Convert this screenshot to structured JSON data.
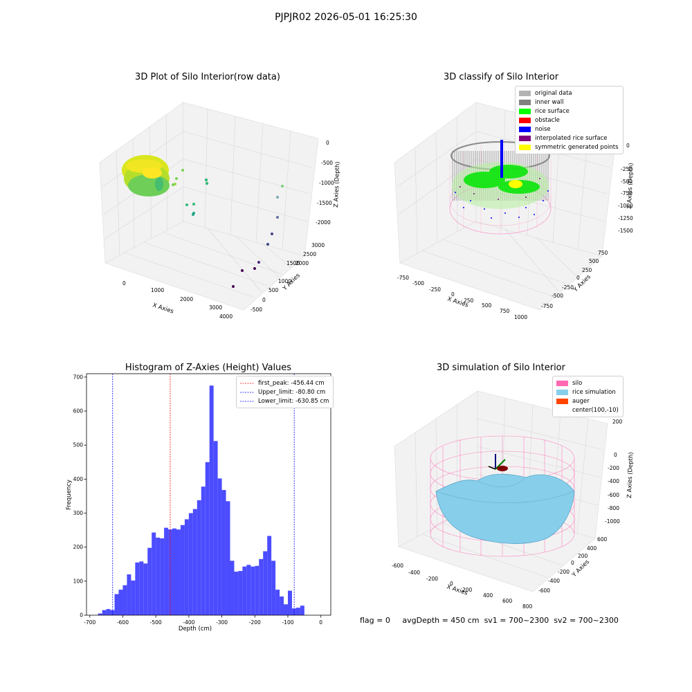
{
  "suptitle": "PJPJR02 2026-05-01 16:25:30",
  "status_line": {
    "flag": "flag = 0",
    "avg": "avgDepth = 450 cm",
    "sv1": "sv1 = 700~2300",
    "sv2": "sv2 = 700~2300"
  },
  "chart_data": [
    {
      "type": "scatter",
      "projection": "3d",
      "title": "3D Plot of Silo Interior(row data)",
      "xlabel": "X Axies",
      "ylabel": "Y Axies",
      "zlabel": "Z Axies (Depth)",
      "xticks": [
        "0",
        "1000",
        "2000",
        "3000",
        "4000"
      ],
      "yticks": [
        "-500",
        "0",
        "500",
        "1000",
        "1500",
        "2000",
        "2500",
        "3000"
      ],
      "zticks": [
        "0",
        "-500",
        "-1000",
        "-1500",
        "-2000"
      ],
      "colormap": "viridis"
    },
    {
      "type": "scatter",
      "projection": "3d",
      "title": "3D classify of Silo Interior",
      "xlabel": "X Axies",
      "ylabel": "Y Axies",
      "zlabel": "Z Axies (Depth)",
      "xticks": [
        "-750",
        "-500",
        "-250",
        "0",
        "250",
        "500",
        "750",
        "1000"
      ],
      "yticks": [
        "-750",
        "-500",
        "-250",
        "0",
        "250",
        "500",
        "750"
      ],
      "zticks": [
        "0",
        "-250",
        "-500",
        "-750",
        "-1000",
        "-1250",
        "-1500"
      ],
      "legend_position": "top-right",
      "legend": [
        {
          "label": "original data",
          "color": "#b3b3b3"
        },
        {
          "label": "inner wall",
          "color": "#808080"
        },
        {
          "label": "rice surface",
          "color": "#00ff00"
        },
        {
          "label": "obstacle",
          "color": "#ff0000"
        },
        {
          "label": "noise",
          "color": "#0000ff"
        },
        {
          "label": "interpolated rice surface",
          "color": "#800080"
        },
        {
          "label": "symmetric generated points",
          "color": "#ffff00"
        }
      ]
    },
    {
      "type": "bar",
      "subtype": "histogram",
      "title": "Histogram of Z-Axies (Height) Values",
      "xlabel": "Depth (cm)",
      "ylabel": "Frequency",
      "xlim": [
        -710,
        30
      ],
      "ylim": [
        0,
        710
      ],
      "xticks": [
        -700,
        -600,
        -500,
        -400,
        -300,
        -200,
        -100,
        0
      ],
      "yticks": [
        0,
        100,
        200,
        300,
        400,
        500,
        600,
        700
      ],
      "bin_width": 12.5,
      "bin_start": -675,
      "bar_color": "#4c4cff",
      "values": [
        5,
        15,
        18,
        15,
        62,
        75,
        88,
        120,
        102,
        155,
        158,
        152,
        198,
        243,
        228,
        226,
        257,
        252,
        255,
        252,
        265,
        282,
        300,
        312,
        338,
        378,
        450,
        675,
        512,
        402,
        368,
        335,
        160,
        128,
        130,
        143,
        148,
        143,
        145,
        165,
        188,
        233,
        160,
        75,
        55,
        32,
        72,
        20,
        22,
        28
      ],
      "vlines": [
        {
          "x": -456.44,
          "color": "#ff0000",
          "label": "first_peak: -456.44 cm"
        },
        {
          "x": -80.8,
          "color": "#0000ff",
          "label": "Upper_limit: -80.80 cm"
        },
        {
          "x": -630.85,
          "color": "#0000ff",
          "label": "Lower_limit: -630.85 cm"
        }
      ],
      "legend_position": "top-right"
    },
    {
      "type": "area",
      "projection": "3d",
      "title": "3D simulation of Silo Interior",
      "xlabel": "X Axies",
      "ylabel": "Y Axies",
      "zlabel": "Z Axies (Depth)",
      "xticks": [
        "-600",
        "-400",
        "-200",
        "0",
        "200",
        "400",
        "600",
        "800"
      ],
      "yticks": [
        "-600",
        "-400",
        "-200",
        "0",
        "200",
        "400",
        "600"
      ],
      "zticks": [
        "200",
        "0",
        "-200",
        "-400",
        "-600",
        "-800",
        "-1000"
      ],
      "legend_position": "top-right",
      "legend": [
        {
          "label": "silo",
          "color": "#ff69b4"
        },
        {
          "label": "rice simulation",
          "color": "#87ceeb"
        },
        {
          "label": "auger",
          "color": "#ff4500"
        },
        {
          "label": "center(100,-10)",
          "color": ""
        }
      ]
    }
  ]
}
